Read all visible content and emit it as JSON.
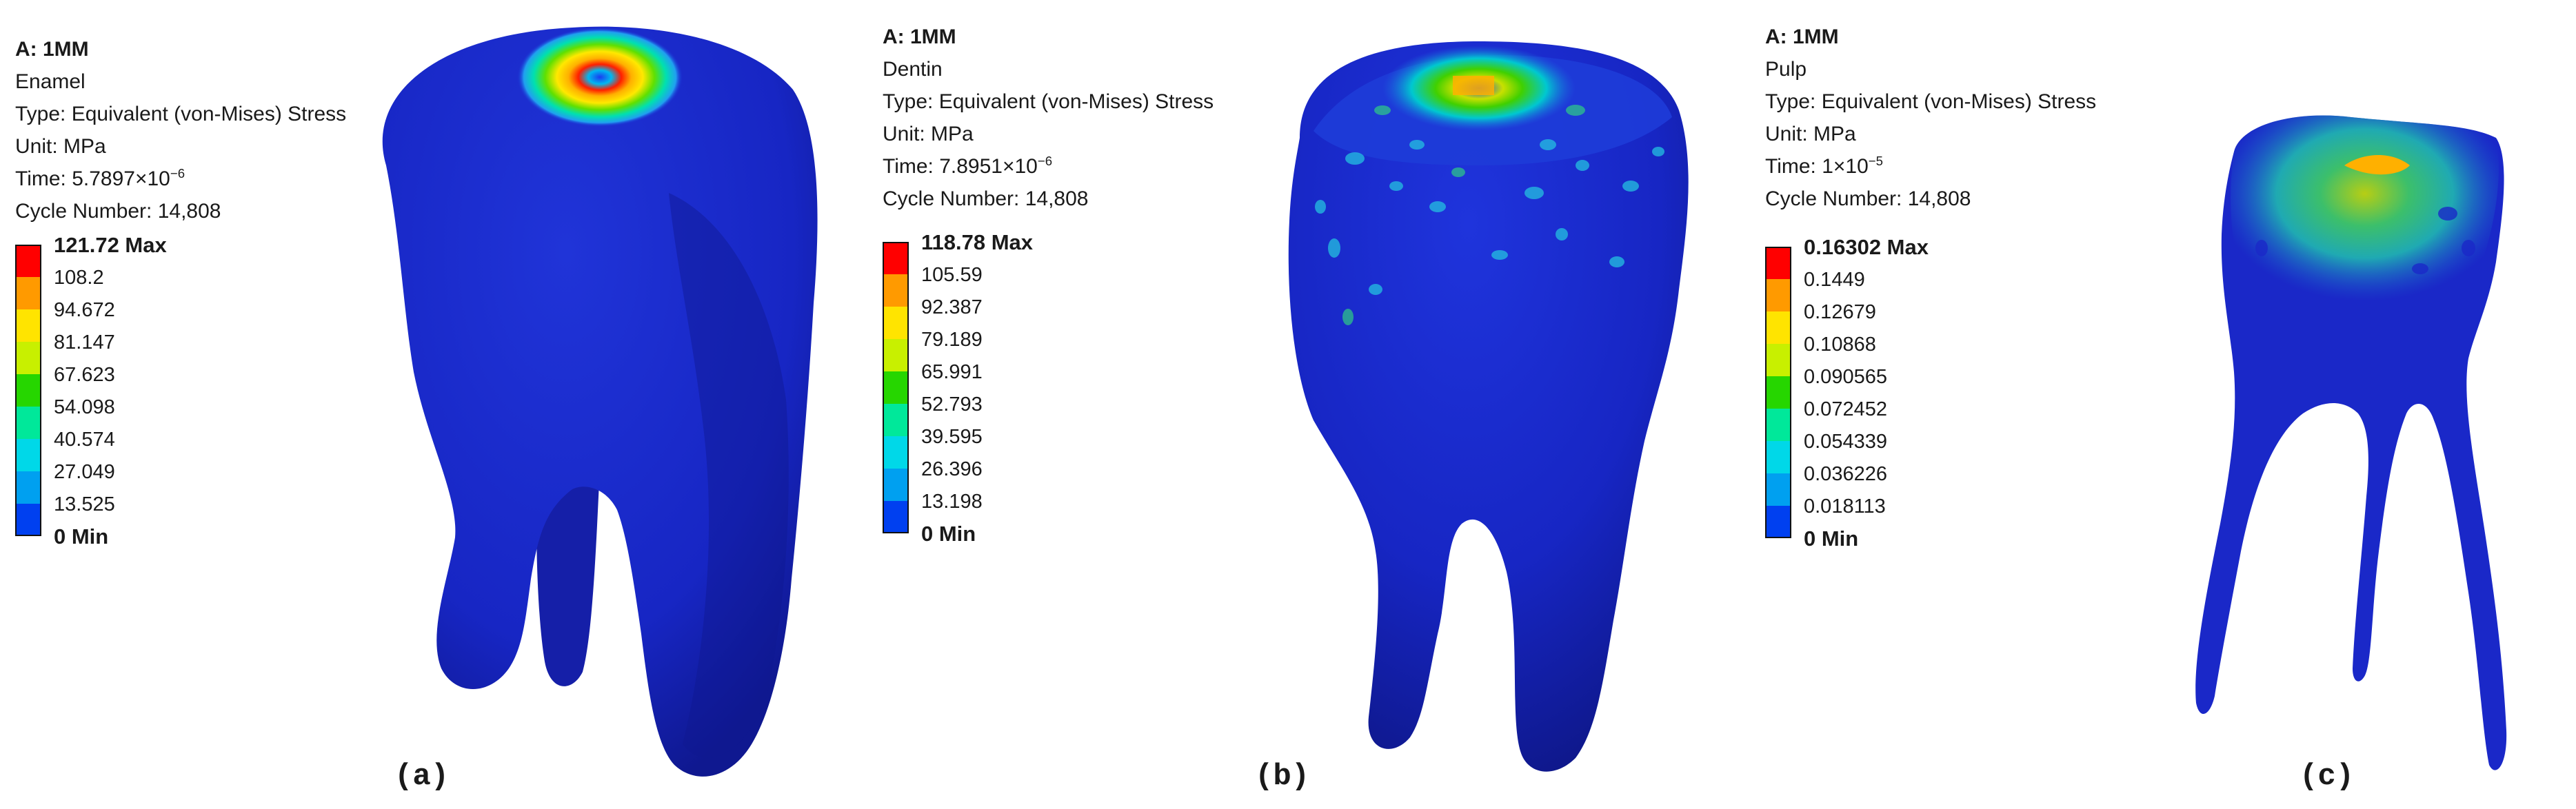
{
  "panels": [
    {
      "id": "a",
      "caption": "(a)",
      "header": {
        "title": "A: 1MM",
        "component": "Enamel",
        "type": "Type: Equivalent (von-Mises) Stress",
        "unit": "Unit: MPa",
        "time_prefix": "Time: 5.7897×10",
        "time_exp": "−6",
        "cycle": "Cycle Number: 14,808"
      },
      "legend": {
        "labels": [
          "121.72 Max",
          "108.2",
          "94.672",
          "81.147",
          "67.623",
          "54.098",
          "40.574",
          "27.049",
          "13.525",
          "0 Min"
        ]
      }
    },
    {
      "id": "b",
      "caption": "(b)",
      "header": {
        "title": "A: 1MM",
        "component": "Dentin",
        "type": "Type: Equivalent (von-Mises) Stress",
        "unit": "Unit: MPa",
        "time_prefix": "Time: 7.8951×10",
        "time_exp": "−6",
        "cycle": "Cycle Number: 14,808"
      },
      "legend": {
        "labels": [
          "118.78 Max",
          "105.59",
          "92.387",
          "79.189",
          "65.991",
          "52.793",
          "39.595",
          "26.396",
          "13.198",
          "0 Min"
        ]
      }
    },
    {
      "id": "c",
      "caption": "(c)",
      "header": {
        "title": "A: 1MM",
        "component": "Pulp",
        "type": "Type: Equivalent (von-Mises) Stress",
        "unit": "Unit: MPa",
        "time_prefix": "Time: 1×10",
        "time_exp": "−5",
        "cycle": "Cycle Number: 14,808"
      },
      "legend": {
        "labels": [
          "0.16302 Max",
          "0.1449",
          "0.12679",
          "0.10868",
          "0.090565",
          "0.072452",
          "0.054339",
          "0.036226",
          "0.018113",
          "0 Min"
        ]
      }
    }
  ],
  "colormap": [
    "#ff0000",
    "#ff9a00",
    "#ffe400",
    "#c8f000",
    "#26d600",
    "#00e89a",
    "#00d8e8",
    "#00a0f0",
    "#0040f0"
  ],
  "model_colors": {
    "base": "#1a26c8",
    "shade": "#0f1890",
    "highlight": "#2c3ee0"
  }
}
